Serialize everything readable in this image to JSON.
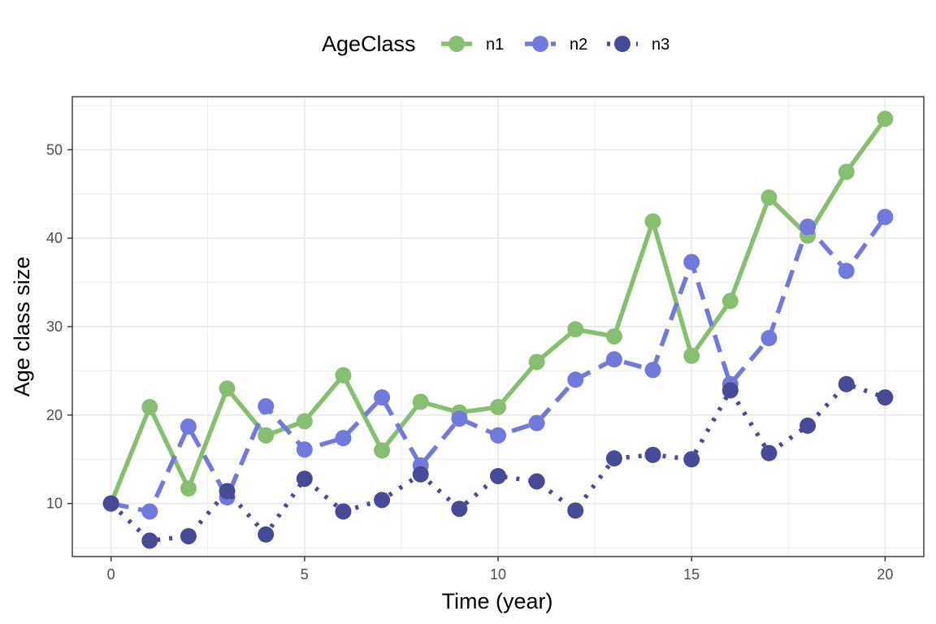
{
  "chart_data": {
    "type": "line",
    "xlabel": "Time (year)",
    "ylabel": "Age class size",
    "legend_title": "AgeClass",
    "legend_position": "top",
    "grid": true,
    "xlim": [
      -1,
      21
    ],
    "ylim": [
      4,
      56
    ],
    "x_ticks": [
      0,
      5,
      10,
      15,
      20
    ],
    "y_ticks": [
      10,
      20,
      30,
      40,
      50
    ],
    "x": [
      0,
      1,
      2,
      3,
      4,
      5,
      6,
      7,
      8,
      9,
      10,
      11,
      12,
      13,
      14,
      15,
      16,
      17,
      18,
      19,
      20
    ],
    "series": [
      {
        "name": "n1",
        "color": "#86bf70",
        "dash": "solid",
        "values": [
          10.0,
          20.9,
          11.7,
          23.0,
          17.7,
          19.3,
          24.5,
          16.0,
          21.5,
          20.3,
          20.9,
          26.0,
          29.7,
          28.9,
          41.9,
          26.7,
          32.9,
          44.6,
          40.3,
          47.5,
          53.5
        ]
      },
      {
        "name": "n2",
        "color": "#7179dc",
        "dash": "dashed",
        "values": [
          10.0,
          9.1,
          18.7,
          10.7,
          21.0,
          16.1,
          17.4,
          22.0,
          14.3,
          19.6,
          17.7,
          19.1,
          24.0,
          26.3,
          25.1,
          37.3,
          23.5,
          28.7,
          41.3,
          36.3,
          42.4
        ]
      },
      {
        "name": "n3",
        "color": "#474a97",
        "dash": "dotted",
        "values": [
          10.0,
          5.8,
          6.3,
          11.4,
          6.5,
          12.8,
          9.1,
          10.4,
          13.3,
          9.4,
          13.1,
          12.5,
          9.2,
          15.1,
          15.5,
          15.0,
          22.8,
          15.7,
          18.8,
          23.5,
          22.0
        ]
      }
    ]
  }
}
